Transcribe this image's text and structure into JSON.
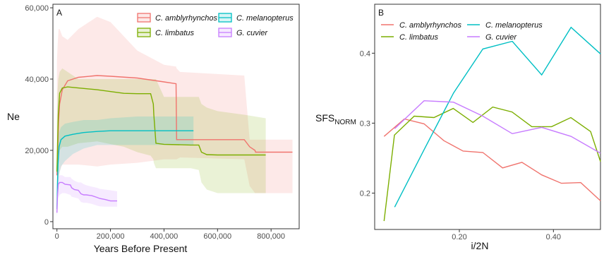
{
  "chart_data": [
    {
      "panel_label": "A",
      "type": "line",
      "xlabel": "Years Before Present",
      "ylabel": "Ne",
      "xlim": [
        -15000,
        905000
      ],
      "ylim": [
        -2000,
        61000
      ],
      "xticks": [
        0,
        200000,
        400000,
        600000,
        800000
      ],
      "xtick_labels": [
        "0",
        "200,000",
        "400,000",
        "600,000",
        "800,000"
      ],
      "yticks": [
        0,
        20000,
        40000,
        60000
      ],
      "ytick_labels": [
        "0",
        "20,000",
        "40,000",
        "60,000"
      ],
      "grid": false,
      "legend_position": "top-right",
      "series": [
        {
          "name": "C. amblyrhynchos",
          "color": "#f0746e",
          "x": [
            0,
            3000,
            6000,
            10000,
            20000,
            40000,
            80000,
            150000,
            200000,
            300000,
            400000,
            445000,
            447000,
            460000,
            700000,
            720000,
            740000,
            742000,
            880000
          ],
          "y": [
            13000,
            20000,
            28000,
            33000,
            37000,
            39500,
            40500,
            41000,
            40800,
            40300,
            39200,
            38700,
            23000,
            23000,
            23000,
            21000,
            20000,
            19500,
            19500
          ],
          "ci_lower": [
            6000,
            8000,
            12000,
            14000,
            16000,
            16000,
            16000,
            15500,
            16000,
            16500,
            17500,
            17500,
            17500,
            18000,
            17500,
            10000,
            8000,
            8000,
            8000
          ],
          "ci_upper": [
            45000,
            50000,
            54000,
            54000,
            52000,
            51000,
            54000,
            57500,
            56000,
            48000,
            44000,
            43500,
            43000,
            42000,
            41000,
            23000,
            23000,
            23000,
            23000
          ]
        },
        {
          "name": "C. limbatus",
          "color": "#7cae00",
          "x": [
            0,
            2000,
            5000,
            10000,
            20000,
            40000,
            80000,
            150000,
            250000,
            300000,
            350000,
            360000,
            362000,
            370000,
            400000,
            500000,
            530000,
            540000,
            560000,
            600000,
            700000,
            780000
          ],
          "y": [
            14000,
            20000,
            30000,
            36000,
            37500,
            37800,
            37500,
            37000,
            36000,
            35900,
            35900,
            33000,
            30000,
            22000,
            21700,
            21500,
            21500,
            19500,
            18800,
            18700,
            18700,
            18700
          ],
          "ci_lower": [
            8000,
            11000,
            17000,
            20000,
            21000,
            21000,
            22000,
            22500,
            21000,
            19500,
            18500,
            17500,
            16500,
            15000,
            15000,
            15000,
            14500,
            11000,
            9000,
            8000,
            8000,
            8000
          ],
          "ci_upper": [
            28000,
            36000,
            40000,
            42000,
            43000,
            42000,
            40000,
            40000,
            40000,
            40000,
            40000,
            40000,
            40000,
            40000,
            35000,
            35000,
            35000,
            33000,
            32000,
            31000,
            30000,
            29000
          ]
        },
        {
          "name": "C. melanopterus",
          "color": "#00bfc4",
          "x": [
            0,
            2000,
            4000,
            8000,
            15000,
            30000,
            60000,
            100000,
            150000,
            200000,
            300000,
            400000,
            510000
          ],
          "y": [
            3500,
            10000,
            16000,
            21000,
            23000,
            24000,
            24500,
            25000,
            25300,
            25500,
            25500,
            25500,
            25500
          ],
          "ci_lower": [
            1500,
            5000,
            9000,
            13000,
            15500,
            17000,
            19000,
            20500,
            21500,
            21500,
            21500,
            21500,
            21500
          ],
          "ci_upper": [
            9000,
            16000,
            22000,
            25000,
            26500,
            27500,
            28000,
            28500,
            28500,
            29000,
            29500,
            29500,
            29500
          ]
        },
        {
          "name": "G. cuvier",
          "color": "#c77cff",
          "x": [
            0,
            2000,
            5000,
            10000,
            20000,
            30000,
            50000,
            55000,
            65000,
            80000,
            90000,
            100000,
            110000,
            130000,
            150000,
            160000,
            180000,
            200000,
            225000
          ],
          "y": [
            2500,
            7000,
            10500,
            11000,
            11000,
            10500,
            10300,
            9500,
            9000,
            8800,
            7800,
            7500,
            7500,
            7300,
            6800,
            6500,
            6200,
            5800,
            5800
          ],
          "ci_lower": [
            1200,
            3500,
            6500,
            7500,
            8000,
            8000,
            7500,
            7000,
            6800,
            6500,
            5500,
            5300,
            5300,
            5000,
            4500,
            4300,
            4200,
            4200,
            4200
          ],
          "ci_upper": [
            6000,
            10500,
            12500,
            13000,
            13000,
            12500,
            12500,
            12000,
            11500,
            11000,
            11000,
            10500,
            10200,
            9800,
            9500,
            9200,
            9000,
            8800,
            8500
          ]
        }
      ]
    },
    {
      "panel_label": "B",
      "type": "line",
      "xlabel": "i/2N",
      "ylabel": "SFS",
      "ylabel_subscript": "NORM",
      "xlim": [
        0.02,
        0.5
      ],
      "ylim": [
        0.148,
        0.47
      ],
      "xticks": [
        0.2,
        0.4
      ],
      "xtick_labels": [
        "0.20",
        "0.40"
      ],
      "yticks": [
        0.2,
        0.3,
        0.4
      ],
      "ytick_labels": [
        "0.2",
        "0.3",
        "0.4"
      ],
      "grid": false,
      "legend_position": "top",
      "series": [
        {
          "name": "C. amblyrhynchos",
          "color": "#f0746e",
          "x": [
            0.04,
            0.083,
            0.125,
            0.167,
            0.208,
            0.25,
            0.292,
            0.333,
            0.375,
            0.417,
            0.458,
            0.5
          ],
          "y": [
            0.281,
            0.306,
            0.299,
            0.275,
            0.26,
            0.258,
            0.236,
            0.244,
            0.226,
            0.214,
            0.215,
            0.189
          ]
        },
        {
          "name": "C. limbatus",
          "color": "#7cae00",
          "x": [
            0.04,
            0.062,
            0.104,
            0.146,
            0.187,
            0.229,
            0.271,
            0.312,
            0.354,
            0.396,
            0.437,
            0.479,
            0.5
          ],
          "y": [
            0.16,
            0.283,
            0.31,
            0.308,
            0.321,
            0.301,
            0.323,
            0.316,
            0.295,
            0.295,
            0.308,
            0.288,
            0.245
          ]
        },
        {
          "name": "C. melanopterus",
          "color": "#00bfc4",
          "x": [
            0.0625,
            0.125,
            0.1875,
            0.25,
            0.3125,
            0.375,
            0.4375,
            0.5
          ],
          "y": [
            0.18,
            0.262,
            0.343,
            0.406,
            0.417,
            0.369,
            0.437,
            0.399
          ]
        },
        {
          "name": "G. cuvier",
          "color": "#c77cff",
          "x": [
            0.0625,
            0.125,
            0.1875,
            0.25,
            0.3125,
            0.375,
            0.4375,
            0.5
          ],
          "y": [
            0.292,
            0.332,
            0.33,
            0.31,
            0.285,
            0.294,
            0.281,
            0.257
          ]
        }
      ]
    }
  ]
}
